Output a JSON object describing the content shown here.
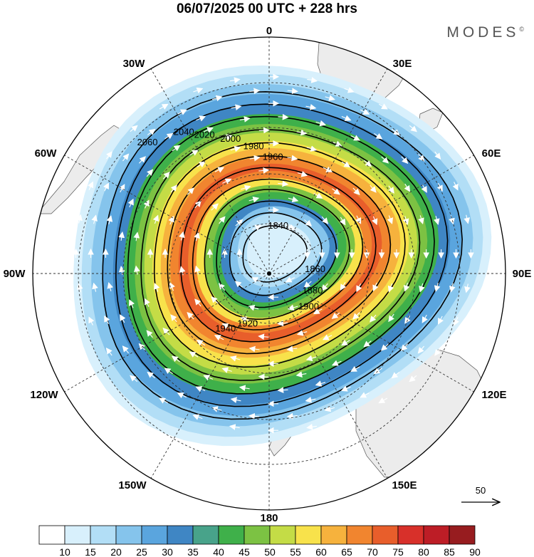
{
  "header": {
    "title": "06/07/2025  00 UTC  + 228 hrs",
    "brand": "MODES",
    "brand_mark": "©"
  },
  "map": {
    "projection": "south-polar-stereographic",
    "longitude_labels": {
      "top": "0",
      "top_right": "30E",
      "right_upper": "60E",
      "right": "90E",
      "right_lower": "120E",
      "bottom_right": "150E",
      "bottom": "180",
      "bottom_left": "150W",
      "left_lower": "120W",
      "left": "90W",
      "left_upper": "60W",
      "top_left": "30W"
    },
    "contour_labels": [
      "1840",
      "1860",
      "1880",
      "1900",
      "1920",
      "1940",
      "1960",
      "1980",
      "2000",
      "2020",
      "2040",
      "2060"
    ],
    "reference_vector": {
      "value": "50",
      "label": "50"
    }
  },
  "colorbar": {
    "ticks": [
      "10",
      "15",
      "20",
      "25",
      "30",
      "35",
      "40",
      "45",
      "50",
      "55",
      "60",
      "65",
      "70",
      "75",
      "80",
      "85",
      "90"
    ],
    "colors": [
      "#ffffff",
      "#d8f0fc",
      "#b2def6",
      "#85c4ec",
      "#5aa5de",
      "#3f86c4",
      "#48a38a",
      "#3fb04a",
      "#7cc243",
      "#c4dc46",
      "#f8e24b",
      "#f6b23d",
      "#f1852f",
      "#e85e2b",
      "#d8302a",
      "#bd1d26",
      "#971c1f"
    ]
  }
}
